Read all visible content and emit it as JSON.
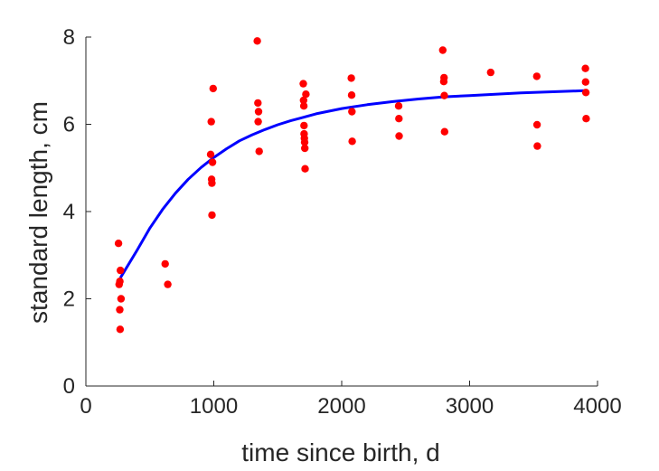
{
  "chart_data": {
    "type": "scatter",
    "title": "",
    "xlabel": "time since birth, d",
    "ylabel": "standard length, cm",
    "xlim": [
      0,
      4000
    ],
    "ylim": [
      0,
      8
    ],
    "xticks": [
      "0",
      "1000",
      "2000",
      "3000",
      "4000"
    ],
    "yticks": [
      "0",
      "2",
      "4",
      "6",
      "8"
    ],
    "grid": false,
    "series": [
      {
        "kind": "scatter",
        "color": "#ff0000",
        "points": [
          [
            255,
            3.27
          ],
          [
            260,
            2.33
          ],
          [
            265,
            1.75
          ],
          [
            266,
            2.4
          ],
          [
            268,
            1.3
          ],
          [
            270,
            2.65
          ],
          [
            275,
            2.0
          ],
          [
            620,
            2.8
          ],
          [
            640,
            2.33
          ],
          [
            975,
            5.31
          ],
          [
            980,
            6.06
          ],
          [
            983,
            4.74
          ],
          [
            985,
            4.65
          ],
          [
            986,
            3.92
          ],
          [
            990,
            5.13
          ],
          [
            995,
            6.82
          ],
          [
            1340,
            7.91
          ],
          [
            1345,
            6.49
          ],
          [
            1347,
            6.06
          ],
          [
            1350,
            6.29
          ],
          [
            1355,
            5.38
          ],
          [
            1700,
            6.93
          ],
          [
            1702,
            6.55
          ],
          [
            1704,
            6.42
          ],
          [
            1705,
            5.97
          ],
          [
            1706,
            5.78
          ],
          [
            1708,
            5.68
          ],
          [
            1710,
            5.59
          ],
          [
            1712,
            5.45
          ],
          [
            1714,
            4.98
          ],
          [
            1720,
            6.69
          ],
          [
            2075,
            7.06
          ],
          [
            2078,
            6.67
          ],
          [
            2080,
            6.29
          ],
          [
            2082,
            5.61
          ],
          [
            2445,
            6.42
          ],
          [
            2447,
            6.13
          ],
          [
            2449,
            5.73
          ],
          [
            2790,
            7.7
          ],
          [
            2798,
            6.98
          ],
          [
            2800,
            7.07
          ],
          [
            2802,
            6.66
          ],
          [
            2804,
            5.83
          ],
          [
            3165,
            7.19
          ],
          [
            3525,
            7.1
          ],
          [
            3527,
            5.99
          ],
          [
            3529,
            5.5
          ],
          [
            3905,
            7.28
          ],
          [
            3907,
            6.97
          ],
          [
            3909,
            6.73
          ],
          [
            3911,
            6.13
          ]
        ]
      },
      {
        "kind": "line",
        "color": "#0000ff",
        "points": [
          [
            270,
            2.48
          ],
          [
            400,
            3.11
          ],
          [
            500,
            3.62
          ],
          [
            600,
            4.05
          ],
          [
            700,
            4.42
          ],
          [
            800,
            4.74
          ],
          [
            900,
            5.01
          ],
          [
            1000,
            5.24
          ],
          [
            1100,
            5.44
          ],
          [
            1200,
            5.62
          ],
          [
            1300,
            5.76
          ],
          [
            1400,
            5.88
          ],
          [
            1500,
            5.99
          ],
          [
            1600,
            6.08
          ],
          [
            1700,
            6.16
          ],
          [
            1800,
            6.24
          ],
          [
            1900,
            6.3
          ],
          [
            2000,
            6.36
          ],
          [
            2200,
            6.45
          ],
          [
            2400,
            6.52
          ],
          [
            2600,
            6.58
          ],
          [
            2800,
            6.63
          ],
          [
            3000,
            6.66
          ],
          [
            3200,
            6.69
          ],
          [
            3400,
            6.72
          ],
          [
            3600,
            6.74
          ],
          [
            3800,
            6.76
          ],
          [
            3900,
            6.77
          ]
        ]
      }
    ]
  }
}
